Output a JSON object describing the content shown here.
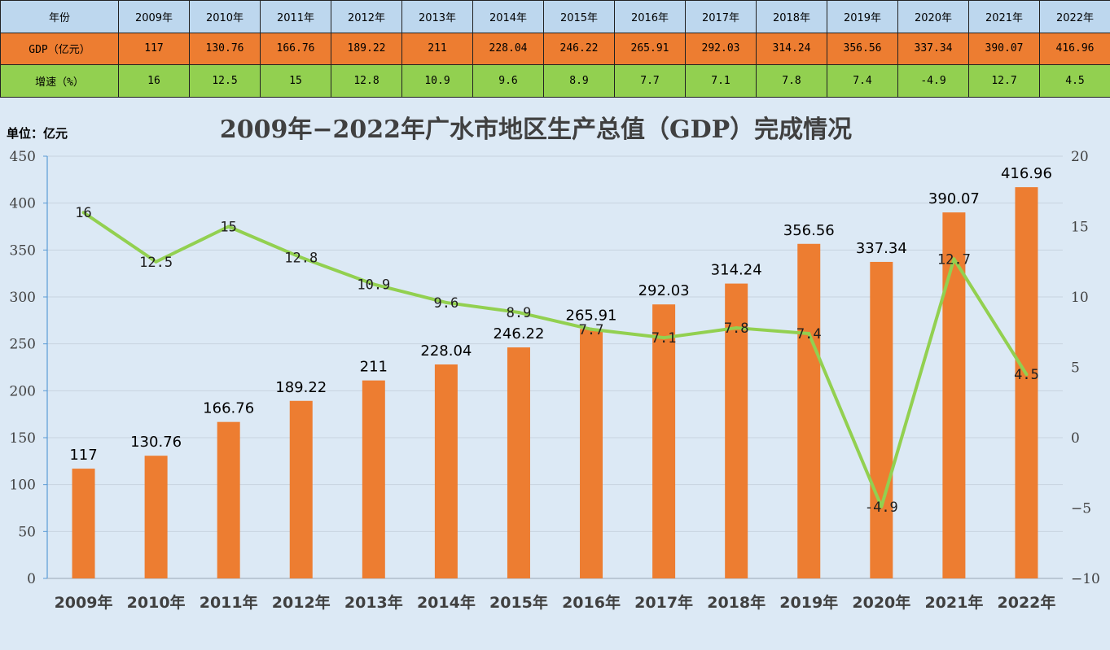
{
  "table": {
    "year_header": "年份",
    "gdp_header": "GDP（亿元）",
    "growth_header": "增速（%）",
    "years": [
      "2009年",
      "2010年",
      "2011年",
      "2012年",
      "2013年",
      "2014年",
      "2015年",
      "2016年",
      "2017年",
      "2018年",
      "2019年",
      "2020年",
      "2021年",
      "2022年"
    ],
    "gdp": [
      "117",
      "130.76",
      "166.76",
      "189.22",
      "211",
      "228.04",
      "246.22",
      "265.91",
      "292.03",
      "314.24",
      "356.56",
      "337.34",
      "390.07",
      "416.96"
    ],
    "growth": [
      "16",
      "12.5",
      "15",
      "12.8",
      "10.9",
      "9.6",
      "8.9",
      "7.7",
      "7.1",
      "7.8",
      "7.4",
      "-4.9",
      "12.7",
      "4.5"
    ]
  },
  "chart_data": {
    "type": "bar",
    "title": "2009年−2022年广水市地区生产总值（GDP）完成情况",
    "unit_label": "单位：亿元",
    "categories": [
      "2009年",
      "2010年",
      "2011年",
      "2012年",
      "2013年",
      "2014年",
      "2015年",
      "2016年",
      "2017年",
      "2018年",
      "2019年",
      "2020年",
      "2021年",
      "2022年"
    ],
    "series": [
      {
        "type": "bar",
        "axis": "left",
        "color": "#ed7d31",
        "values": [
          117,
          130.76,
          166.76,
          189.22,
          211,
          228.04,
          246.22,
          265.91,
          292.03,
          314.24,
          356.56,
          337.34,
          390.07,
          416.96
        ],
        "labels": [
          "117",
          "130.76",
          "166.76",
          "189.22",
          "211",
          "228.04",
          "246.22",
          "265.91",
          "292.03",
          "314.24",
          "356.56",
          "337.34",
          "390.07",
          "416.96"
        ]
      },
      {
        "type": "line",
        "axis": "right",
        "color": "#92d050",
        "values": [
          16,
          12.5,
          15,
          12.8,
          10.9,
          9.6,
          8.9,
          7.7,
          7.1,
          7.8,
          7.4,
          -4.9,
          12.7,
          4.5
        ],
        "labels": [
          "16",
          "12.5",
          "15",
          "12.8",
          "10.9",
          "9.6",
          "8.9",
          "7.7",
          "7.1",
          "7.8",
          "7.4",
          "-4.9",
          "12.7",
          "4.5"
        ]
      }
    ],
    "y_left": {
      "range": [
        0,
        450
      ],
      "ticks": [
        "0",
        "50",
        "100",
        "150",
        "200",
        "250",
        "300",
        "350",
        "400",
        "450"
      ]
    },
    "y_right": {
      "range": [
        -10,
        20
      ],
      "ticks": [
        "−10",
        "−5",
        "0",
        "5",
        "10",
        "15",
        "20"
      ]
    },
    "grid": true,
    "legend": "none"
  }
}
